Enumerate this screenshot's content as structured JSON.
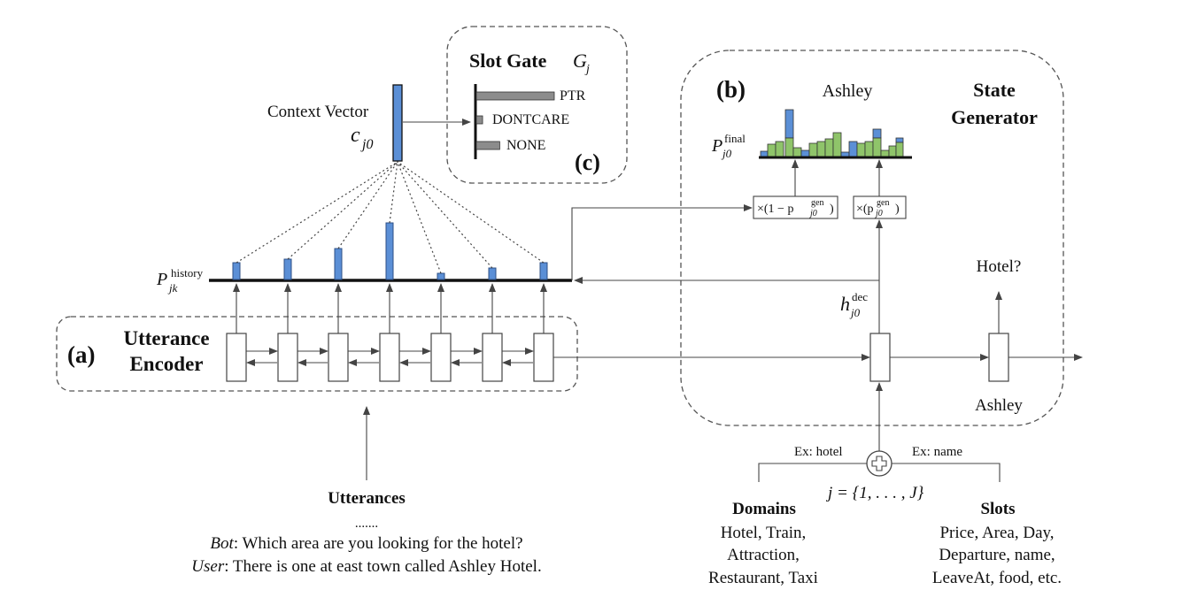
{
  "utterance_encoder": {
    "marker": "(a)",
    "title_line1": "Utterance",
    "title_line2": "Encoder",
    "history_label": "P",
    "history_sup": "history",
    "history_sub": "jk"
  },
  "slot_gate": {
    "marker": "(c)",
    "title": "Slot Gate",
    "symbol": "G",
    "symbol_sub": "j",
    "context_label": "Context Vector",
    "context_symbol": "c",
    "context_sub": "j0",
    "options": [
      {
        "label": "PTR",
        "value": 1.0
      },
      {
        "label": "DONTCARE",
        "value": 0.08
      },
      {
        "label": "NONE",
        "value": 0.3
      }
    ]
  },
  "state_generator": {
    "marker": "(b)",
    "title_line1": "State",
    "title_line2": "Generator",
    "top_word": "Ashley",
    "final_label": "P",
    "final_sup": "final",
    "final_sub": "j0",
    "mult_left": "×(1 − p",
    "mult_right": "×(p",
    "gen_sup": "gen",
    "gen_sub": "j0",
    "close_paren": ")",
    "dec_label": "h",
    "dec_sup": "dec",
    "dec_sub": "j0",
    "output_question": "Hotel?",
    "output_word": "Ashley"
  },
  "inputs": {
    "ex_hotel": "Ex: hotel",
    "ex_name": "Ex: name",
    "index_formula": "j = {1, . . . , J}",
    "domains_title": "Domains",
    "domains_lines": [
      "Hotel, Train,",
      "Attraction,",
      "Restaurant, Taxi"
    ],
    "slots_title": "Slots",
    "slots_lines": [
      "Price, Area, Day,",
      "Departure, name,",
      "LeaveAt, food, etc."
    ]
  },
  "utterances": {
    "title": "Utterances",
    "ellipsis": ".......",
    "bot_speaker": "Bot",
    "bot_text": ": Which area are you looking for the hotel?",
    "user_speaker": "User",
    "user_text": ": There is one at east town called Ashley Hotel."
  },
  "colors": {
    "blue": "#5b8fd6",
    "green": "#8fc46a",
    "gray": "#8c8c8c",
    "line": "#444444"
  }
}
